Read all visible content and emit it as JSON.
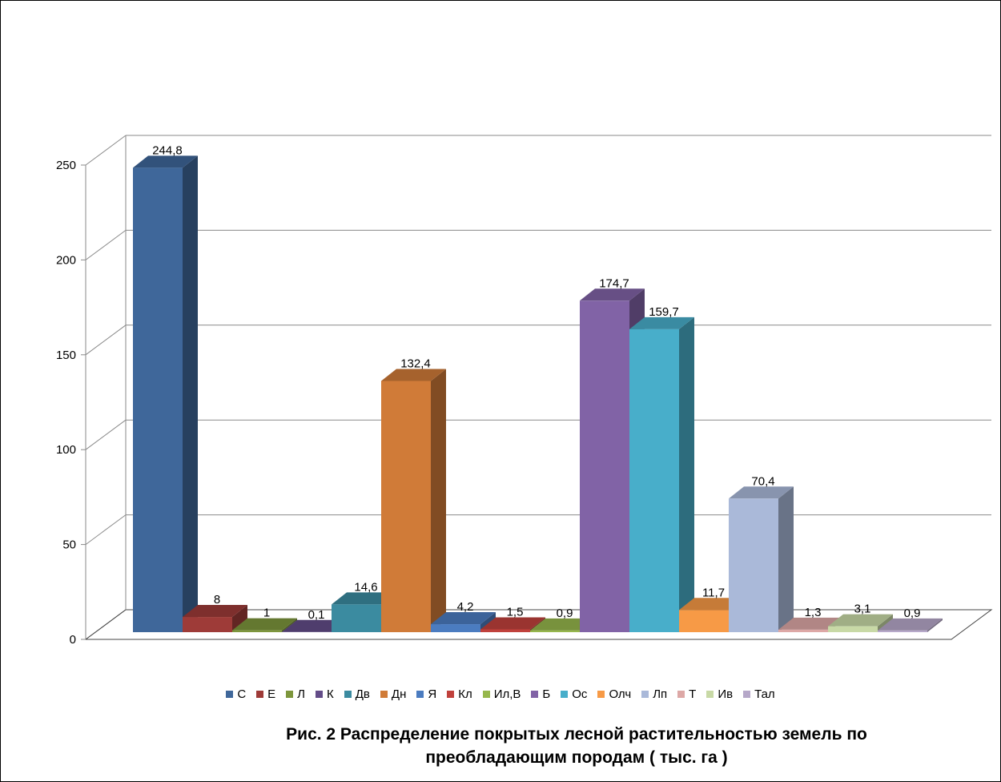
{
  "chart_data": {
    "type": "bar",
    "title": "Рис. 2 Распределение  покрытых лесной растительностью земель по преобладающим  породам  ( тыс. га )",
    "caption_lines": [
      "Рис. 2 Распределение  покрытых лесной растительностью земель по",
      "преобладающим  породам  ( тыс. га )"
    ],
    "categories": [
      "С",
      "Е",
      "Л",
      "К",
      "Дв",
      "Дн",
      "Я",
      "Кл",
      "Ил,В",
      "Б",
      "Ос",
      "Олч",
      "Лп",
      "Т",
      "Ив",
      "Тал"
    ],
    "values": [
      244.8,
      8,
      1,
      0.1,
      14.6,
      132.4,
      4.2,
      1.5,
      0.9,
      174.7,
      159.7,
      11.7,
      70.4,
      1.3,
      3.1,
      0.9
    ],
    "value_labels": [
      "244,8",
      "8",
      "1",
      "0,1",
      "14,6",
      "132,4",
      "4,2",
      "1,5",
      "0,9",
      "174,7",
      "159,7",
      "11,7",
      "70,4",
      "1,3",
      "3,1",
      "0,9"
    ],
    "colors": [
      "#3F679A",
      "#9E3B38",
      "#7D963C",
      "#634C88",
      "#3B8BA0",
      "#D07B38",
      "#4B7CC0",
      "#C0413C",
      "#96B74C",
      "#8163A6",
      "#48AECA",
      "#F79A46",
      "#AAB9D9",
      "#DDA8A6",
      "#C8D9A6",
      "#B6A8C9"
    ],
    "ylim": [
      0,
      250
    ],
    "yticks": [
      "0",
      "50",
      "100",
      "150",
      "200",
      "250"
    ],
    "grid": true,
    "legend_position": "bottom"
  }
}
